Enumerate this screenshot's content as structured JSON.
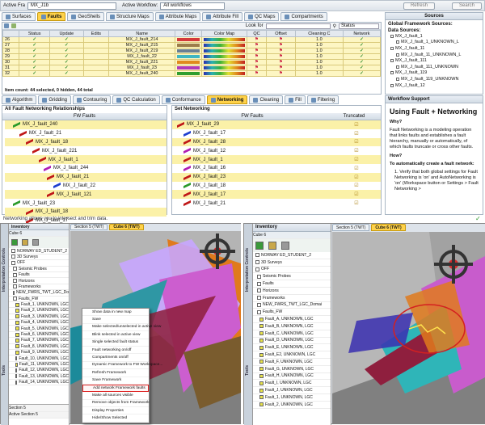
{
  "top_bar": {
    "active_frame_label": "Active Fra",
    "active_frame_value": "MX_J1b",
    "active_workflow_label": "Active Workflow:",
    "active_workflow_value": "All workflows",
    "refresh_label": "Refresh",
    "search_label": "Search"
  },
  "main_tabs": [
    "Surfaces",
    "Faults",
    "GeoShells",
    "Structure Maps",
    "Attribute Maps",
    "Attribute Fill",
    "QC Maps",
    "Compartments"
  ],
  "table": {
    "look_for_label": "Look for",
    "status_select": "Status",
    "columns": [
      "Status",
      "Update",
      "Edits",
      "Name",
      "Color",
      "Color Map",
      "QC",
      "Offset",
      "Cleaning C",
      "Network"
    ],
    "rows": [
      {
        "num": "26",
        "name": "MX_J_fault_214",
        "color": "#d43a3a",
        "v": "1.0"
      },
      {
        "num": "27",
        "name": "MX_J_fault_215",
        "color": "#9c7d4a",
        "v": "1.0"
      },
      {
        "num": "28",
        "name": "MX_J_fault_219",
        "color": "#6a7f93",
        "v": "1.0"
      },
      {
        "num": "29",
        "name": "MX_J_fault_22",
        "color": "#3fb6c2",
        "v": "1.0"
      },
      {
        "num": "30",
        "name": "MX_J_fault_221",
        "color": "#e08a1e",
        "v": "1.0"
      },
      {
        "num": "31",
        "name": "MX_J_fault_23",
        "color": "#b03ab8",
        "v": "1.0"
      },
      {
        "num": "32",
        "name": "MX_J_fault_240",
        "color": "#2f9e2f",
        "v": "1.0"
      }
    ],
    "item_count": "Item count: 44 selected, 0 hidden, 44 total"
  },
  "sources": {
    "title": "Sources",
    "heading": "Global Framework Sources:",
    "data_sources_label": "Data Sources:",
    "items": [
      "MX_J_fault_1",
      "MX_J_fault_1_UNKNOWN_L",
      "MX_J_fault_11",
      "MX_J_fault_11_UNKNOWN_L",
      "MX_J_fault_111",
      "MX_J_fault_111_UNKNOWN",
      "MX_J_fault_119",
      "MX_J_fault_119_UNKNOWN",
      "MX_J_fault_12"
    ]
  },
  "tool_tabs": [
    "Algorithm",
    "Gridding",
    "Contouring",
    "QC Calculation",
    "Conformance",
    "Networking",
    "Cleaning",
    "Fill",
    "Filtering"
  ],
  "relationships": {
    "title": "All Fault Networking Relationships",
    "col": "FW Faults",
    "items": [
      {
        "label": "MX_J_fault_240",
        "c": "g"
      },
      {
        "label": "MX_J_fault_21",
        "c": ""
      },
      {
        "label": "MX_J_fault_18",
        "c": ""
      },
      {
        "label": "MX_J_fault_221",
        "c": ""
      },
      {
        "label": "MX_J_fault_1",
        "c": ""
      },
      {
        "label": "MX_J_fault_244",
        "c": "p"
      },
      {
        "label": "MX_J_fault_21",
        "c": ""
      },
      {
        "label": "MX_J_fault_22",
        "c": "b"
      },
      {
        "label": "MX_J_fault_121",
        "c": ""
      },
      {
        "label": "MX_J_fault_23",
        "c": "g"
      },
      {
        "label": "MX_J_fault_18",
        "c": ""
      },
      {
        "label": "MX_J_fault_17",
        "c": ""
      }
    ]
  },
  "set_networking": {
    "title": "Set Networking",
    "col_faults": "FW Faults",
    "col_truncated": "Truncated",
    "items": [
      "MX_J_fault_29",
      "MX_J_fault_17",
      "MX_J_fault_28",
      "MX_J_fault_12",
      "MX_J_fault_1",
      "MX_J_fault_16",
      "MX_J_fault_23",
      "MX_J_fault_18",
      "MX_J_fault_17",
      "MX_J_fault_21"
    ]
  },
  "workflow_support": {
    "title": "Workflow Support",
    "heading": "Using Fault + Networking",
    "why": "Why?",
    "why_text": "Fault Networking is a modeling operation that links faults and establishes a fault hierarchy, manually or automatically, of which faults truncate or cross other faults.",
    "how": "How?",
    "how_sub": "To automatically create a fault network:",
    "step": "1. Verify that both global settings for Fault Networking is 'on' and AutoNetworking is 'on' (Workspace button or Settings > Fault Networking >"
  },
  "status_msg": "Networking allows you to intersect and trim data.",
  "left_view": {
    "inventory_title": "Inventory",
    "cube": "Cube 6",
    "tree": [
      "NORWAY ED_STUDENT_2",
      "3D Surveys",
      "OFF",
      "Seismic Probes",
      "Faults",
      "Horizons",
      "Frameworks",
      "NEW_FWRS_TWT_LGC_Domain",
      "Faults_FW",
      "Fault_1, UNKNOWN, LGC",
      "Fault_2, UNKNOWN, LGC",
      "Fault_3, UNKNOWN, LGC",
      "Fault_4, UNKNOWN, LGC",
      "Fault_5, UNKNOWN, LGC",
      "Fault_6, UNKNOWN, LGC",
      "Fault_7, UNKNOWN, LGC",
      "Fault_8, UNKNOWN, LGC",
      "Fault_9, UNKNOWN, LGC",
      "Fault_10, UNKNOWN, LGC",
      "Fault_11, UNKNOWN, LGC",
      "Fault_12, UNKNOWN, LGC",
      "Fault_13, UNKNOWN, LGC",
      "Fault_14, UNKNOWN, LGC"
    ],
    "bottom": [
      "Section 5",
      "Active Section 5"
    ],
    "tabs": [
      "Section 5 (TWT)",
      "Cube 6 (TWT)"
    ],
    "menu": [
      "Show data in new map",
      "Save",
      "Make selected/unselected in active view",
      "Blink selected in active view",
      "Single selected fault status",
      "Fault networking on/off",
      "Compartments on/off",
      "Dynamic Framework to FW Workspace...",
      "Refresh Framework",
      "Save Framework",
      "Add network Framework faults",
      "Make all sources visible",
      "Remove objects from Framework",
      "Display Properties",
      "Hide/Show Selected"
    ],
    "side_labels": [
      "Interpretation Controls",
      "Tools"
    ]
  },
  "right_view": {
    "inventory_title": "Inventory",
    "cube": "Cube 6",
    "tree": [
      "NORWAY ED_STUDENT_2",
      "3D Surveys",
      "OFF",
      "Seismic Probes",
      "Faults",
      "Horizons",
      "Frameworks",
      "NEW_FWRS_TWT_LGC_Domai",
      "Faults_FW",
      "Fault_A, UNKNOWN, LGC",
      "Fault_B, UNKNOWN, LGC",
      "Fault_C, UNKNOWN, LGC",
      "Fault_D, UNKNOWN, LGC",
      "Fault_E, UNKNOWN, LGC",
      "Fault_E2, UNKNOWN, LGC",
      "Fault_F, UNKNOWN, LGC",
      "Fault_G, UNKNOWN, LGC",
      "Fault_H, UNKNOWN, LGC",
      "Fault_I, UNKNOWN, LGC",
      "Fault_J, UNKNOWN, LGC",
      "Fault_1, UNKNOWN, LGC",
      "Fault_2, UNKNOWN, LGC"
    ],
    "tabs": [
      "Section 5 (TWT)",
      "Cube 6 (TWT)"
    ],
    "side_labels": [
      "Interpretation Controls",
      "Tools"
    ]
  }
}
